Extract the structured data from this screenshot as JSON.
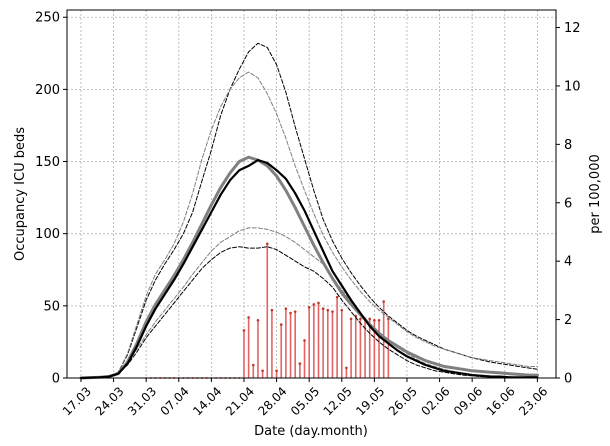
{
  "chart_data": {
    "type": "line",
    "title": "",
    "xlabel": "Date (day.month)",
    "ylabel": "Occupancy ICU beds",
    "ylabel_right": "per 100,000",
    "x_tick_labels": [
      "17.03",
      "24.03",
      "31.03",
      "07.04",
      "14.04",
      "21.04",
      "28.04",
      "05.05",
      "12.05",
      "19.05",
      "26.05",
      "02.06",
      "09.06",
      "16.06",
      "23.06"
    ],
    "x_tick_days": [
      0,
      7,
      14,
      21,
      28,
      35,
      42,
      49,
      56,
      63,
      70,
      77,
      84,
      91,
      98
    ],
    "xlim": [
      -3,
      102
    ],
    "ylim": [
      0,
      255
    ],
    "y_ticks": [
      0,
      50,
      100,
      150,
      200,
      250
    ],
    "y2lim": [
      0,
      12.6
    ],
    "y2_ticks": [
      0,
      2,
      4,
      6,
      8,
      10,
      12
    ],
    "grid": true,
    "bar_color": "#e36464",
    "series": [
      {
        "style": "black-solid",
        "x": [
          0,
          4,
          6,
          8,
          10,
          12,
          14,
          16,
          18,
          20,
          22,
          24,
          26,
          28,
          30,
          32,
          34,
          36,
          38,
          40,
          42,
          44,
          46,
          48,
          50,
          52,
          54,
          56,
          58,
          60,
          62,
          64,
          66,
          68,
          70,
          72,
          74,
          76,
          78,
          80,
          82,
          84,
          86,
          88,
          90,
          92,
          94,
          96,
          98
        ],
        "values": [
          0,
          0.5,
          1,
          3,
          10,
          22,
          36,
          48,
          58,
          68,
          79,
          91,
          103,
          115,
          127,
          137,
          144,
          147,
          151,
          149,
          144,
          138,
          128,
          116,
          102,
          88,
          74,
          64,
          54,
          45,
          36,
          29,
          24,
          19,
          15,
          12,
          9,
          7,
          5,
          4,
          3,
          2,
          1.5,
          1,
          1,
          0.5,
          0.5,
          0.5,
          0.5
        ]
      },
      {
        "style": "gray-solid",
        "x": [
          0,
          4,
          6,
          8,
          10,
          12,
          14,
          16,
          18,
          20,
          22,
          24,
          26,
          28,
          30,
          32,
          34,
          36,
          38,
          40,
          42,
          44,
          46,
          48,
          50,
          52,
          54,
          56,
          58,
          60,
          62,
          64,
          66,
          68,
          70,
          72,
          74,
          76,
          78,
          80,
          82,
          84,
          86,
          88,
          90,
          92,
          94,
          96,
          98
        ],
        "values": [
          0,
          0.5,
          1,
          3,
          11,
          24,
          39,
          51,
          61,
          71,
          82,
          94,
          107,
          120,
          132,
          142,
          150,
          153,
          151,
          147,
          140,
          130,
          118,
          105,
          92,
          80,
          69,
          59,
          51,
          44,
          37,
          31,
          26,
          22,
          18,
          15,
          12,
          10,
          8,
          7,
          6,
          5,
          4.5,
          4,
          3.5,
          3,
          2.5,
          2,
          2
        ]
      },
      {
        "style": "black-dashed",
        "x": [
          0,
          4,
          6,
          8,
          10,
          12,
          14,
          16,
          18,
          20,
          22,
          24,
          26,
          28,
          30,
          32,
          34,
          36,
          38,
          40,
          42,
          44,
          46,
          48,
          50,
          52,
          54,
          56,
          58,
          60,
          62,
          64,
          66,
          68,
          70,
          72,
          74,
          76,
          78,
          80,
          82,
          84,
          86,
          88,
          90,
          92,
          94,
          96,
          98
        ],
        "values": [
          0,
          0.5,
          1,
          4,
          16,
          35,
          54,
          68,
          79,
          89,
          100,
          115,
          137,
          158,
          182,
          200,
          214,
          226,
          232,
          229,
          217,
          198,
          174,
          152,
          130,
          110,
          95,
          83,
          73,
          64,
          56,
          49,
          43,
          38,
          33,
          29,
          26,
          23,
          20,
          18,
          16,
          14,
          12.5,
          11,
          10,
          9,
          8,
          7,
          6
        ]
      },
      {
        "style": "gray-dashed",
        "x": [
          0,
          4,
          6,
          8,
          10,
          12,
          14,
          16,
          18,
          20,
          22,
          24,
          26,
          28,
          30,
          32,
          34,
          36,
          38,
          40,
          42,
          44,
          46,
          48,
          50,
          52,
          54,
          56,
          58,
          60,
          62,
          64,
          66,
          68,
          70,
          72,
          74,
          76,
          78,
          80,
          82,
          84,
          86,
          88,
          90,
          92,
          94,
          96,
          98
        ],
        "values": [
          0,
          0.5,
          1,
          4,
          17,
          37,
          57,
          72,
          82,
          93,
          108,
          128,
          152,
          172,
          188,
          200,
          208,
          212,
          208,
          197,
          183,
          166,
          147,
          130,
          114,
          99,
          87,
          77,
          68,
          60,
          53,
          47,
          42,
          37,
          32,
          28,
          25,
          22,
          20,
          18,
          16,
          14,
          13,
          12,
          11,
          10,
          9,
          8,
          8
        ]
      },
      {
        "style": "gray-dashed",
        "x": [
          0,
          4,
          6,
          8,
          10,
          12,
          14,
          16,
          18,
          20,
          22,
          24,
          26,
          28,
          30,
          32,
          34,
          36,
          38,
          40,
          42,
          44,
          46,
          48,
          50,
          52,
          54,
          56,
          58,
          60,
          62,
          64,
          66,
          68,
          70,
          72,
          74,
          76,
          78,
          80,
          82,
          84,
          86,
          88,
          90,
          92,
          94,
          96,
          98
        ],
        "values": [
          0,
          0.5,
          1,
          3,
          10,
          20,
          30,
          39,
          47,
          55,
          63,
          72,
          80,
          88,
          94,
          98,
          102,
          104,
          104,
          103,
          101,
          98,
          94,
          89,
          84,
          79,
          70,
          61,
          53,
          45,
          38,
          32,
          26,
          21,
          17,
          13,
          10,
          8,
          6,
          4.5,
          3.5,
          2.5,
          2,
          1.5,
          1,
          1,
          0.5,
          0.5,
          0.5
        ]
      },
      {
        "style": "black-dashed",
        "x": [
          0,
          4,
          6,
          8,
          10,
          12,
          14,
          16,
          18,
          20,
          22,
          24,
          26,
          28,
          30,
          32,
          34,
          36,
          38,
          40,
          42,
          44,
          46,
          48,
          50,
          52,
          54,
          56,
          58,
          60,
          62,
          64,
          66,
          68,
          70,
          72,
          74,
          76,
          78,
          80,
          82,
          84,
          86,
          88,
          90,
          92,
          94,
          96,
          98
        ],
        "values": [
          0,
          0.5,
          1,
          3,
          9,
          18,
          28,
          36,
          44,
          52,
          60,
          68,
          76,
          82,
          87,
          90,
          91,
          90,
          90,
          91,
          89,
          85,
          81,
          77,
          74,
          69,
          63,
          54,
          46,
          38,
          31,
          25,
          20,
          16,
          12,
          9,
          7,
          5,
          4,
          3,
          2,
          1.5,
          1,
          1,
          0.5,
          0.5,
          0.5,
          0.5,
          0.5
        ]
      }
    ],
    "bars": {
      "x": [
        35,
        36,
        37,
        38,
        39,
        40,
        41,
        42,
        43,
        44,
        45,
        46,
        47,
        48,
        49,
        50,
        51,
        52,
        53,
        54,
        55,
        56,
        57,
        58,
        59,
        60,
        61,
        62,
        63,
        64,
        65,
        66
      ],
      "values": [
        33,
        42,
        9,
        40,
        5,
        93,
        47,
        5,
        37,
        48,
        45,
        46,
        10,
        26,
        49,
        51,
        52,
        48,
        47,
        46,
        56,
        47,
        7,
        41,
        43,
        41,
        41,
        41,
        40,
        40,
        53,
        41
      ]
    },
    "zero_markers_x": [
      14,
      15,
      16,
      17,
      18,
      19,
      20,
      21,
      22,
      23,
      24,
      25,
      26,
      27,
      28,
      29,
      30,
      31,
      32,
      33,
      34
    ]
  }
}
